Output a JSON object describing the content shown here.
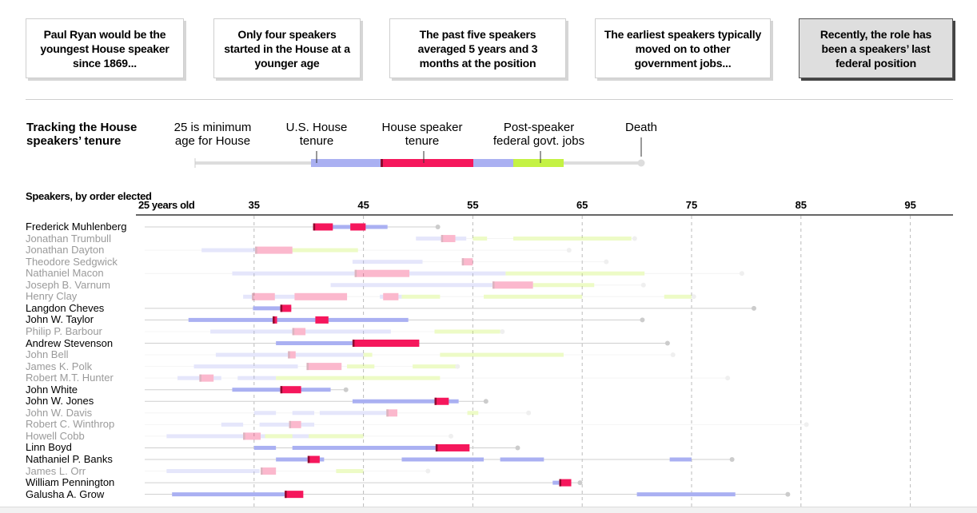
{
  "cards": [
    {
      "text": "Paul Ryan would be the youngest House speaker since 1869...",
      "active": false
    },
    {
      "text": "Only four speakers started in the House at a younger age",
      "active": false
    },
    {
      "text": "The past five speakers averaged 5 years and 3 months at the position",
      "active": false
    },
    {
      "text": "The earliest speakers typically moved on to other government jobs...",
      "active": false
    },
    {
      "text": "Recently, the role has been a speakers’ last federal position",
      "active": true
    }
  ],
  "legend": {
    "title": "Tracking the House speakers’ tenure",
    "min_age": "25 is minimum age for House",
    "house": "U.S. House tenure",
    "speaker": "House speaker tenure",
    "post": "Post-speaker federal govt. jobs",
    "death": "Death"
  },
  "colors": {
    "house": "#aab0f2",
    "speaker": "#f5175c",
    "post": "#c4f244",
    "line": "#dddddd",
    "marker": "#8c0a2e",
    "grid": "#bbbbbb"
  },
  "chart_data": {
    "type": "timeline",
    "title": "Speakers, by order elected",
    "x_unit": "age",
    "x_first_label": "25 years old",
    "x_ticks": [
      35,
      45,
      55,
      65,
      75,
      85,
      95
    ],
    "highlight_group": "last federal position",
    "rows": [
      {
        "name": "Frederick Muhlenberg",
        "hl": true,
        "start": 25.0,
        "house": [
          [
            40.4,
            47.2
          ]
        ],
        "speaker": [
          [
            40.4,
            42.2
          ],
          [
            43.8,
            45.2
          ]
        ],
        "post": [],
        "death": 51.8
      },
      {
        "name": "Jonathan Trumbull",
        "hl": false,
        "start": 50.4,
        "house": [
          [
            49.8,
            54.4
          ]
        ],
        "speaker": [
          [
            52.1,
            53.4
          ]
        ],
        "post": [
          [
            55.0,
            56.3
          ],
          [
            58.7,
            69.5
          ]
        ],
        "death": 69.8
      },
      {
        "name": "Jonathan Dayton",
        "hl": false,
        "start": 25.0,
        "house": [
          [
            30.2,
            38.6
          ]
        ],
        "speaker": [
          [
            35.1,
            38.5
          ]
        ],
        "post": [
          [
            38.5,
            44.5
          ]
        ],
        "death": 63.8
      },
      {
        "name": "Theodore Sedgwick",
        "hl": false,
        "start": 44.0,
        "house": [
          [
            44.0,
            50.4
          ]
        ],
        "speaker": [
          [
            54.0,
            55.0
          ]
        ],
        "post": [],
        "death": 67.2
      },
      {
        "name": "Nathaniel Macon",
        "hl": false,
        "start": 25.0,
        "house": [
          [
            33.0,
            58.0
          ]
        ],
        "speaker": [
          [
            44.2,
            49.2
          ]
        ],
        "post": [
          [
            58.0,
            70.7
          ]
        ],
        "death": 79.6
      },
      {
        "name": "Joseph B. Varnum",
        "hl": false,
        "start": 42.0,
        "house": [
          [
            42.0,
            57.0
          ]
        ],
        "speaker": [
          [
            56.8,
            60.5
          ]
        ],
        "post": [
          [
            60.5,
            66.1
          ]
        ],
        "death": 70.6
      },
      {
        "name": "Henry Clay",
        "hl": false,
        "start": 34.0,
        "house": [
          [
            34.0,
            43.5
          ],
          [
            46.5,
            48.5
          ]
        ],
        "speaker": [
          [
            34.8,
            36.9
          ],
          [
            38.7,
            43.5
          ],
          [
            46.8,
            48.2
          ]
        ],
        "post": [
          [
            48.5,
            52.0
          ],
          [
            56.0,
            65.0
          ],
          [
            72.5,
            75.0
          ]
        ],
        "death": 75.2
      },
      {
        "name": "Langdon Cheves",
        "hl": true,
        "start": 25.0,
        "house": [
          [
            34.9,
            38.4
          ]
        ],
        "speaker": [
          [
            37.4,
            38.4
          ]
        ],
        "post": [],
        "death": 80.7
      },
      {
        "name": "John W. Taylor",
        "hl": true,
        "start": 25.0,
        "house": [
          [
            29.0,
            49.1
          ]
        ],
        "speaker": [
          [
            36.7,
            37.1
          ],
          [
            40.6,
            41.8
          ]
        ],
        "post": [],
        "death": 70.5
      },
      {
        "name": "Philip P. Barbour",
        "hl": false,
        "start": 25.0,
        "house": [
          [
            31.0,
            47.5
          ]
        ],
        "speaker": [
          [
            38.5,
            39.7
          ]
        ],
        "post": [
          [
            51.5,
            57.5
          ]
        ],
        "death": 57.7
      },
      {
        "name": "Andrew Stevenson",
        "hl": true,
        "start": 25.0,
        "house": [
          [
            37.0,
            50.1
          ]
        ],
        "speaker": [
          [
            44.0,
            50.1
          ]
        ],
        "post": [],
        "death": 72.8
      },
      {
        "name": "John Bell",
        "hl": false,
        "start": 25.0,
        "house": [
          [
            31.5,
            45.0
          ]
        ],
        "speaker": [
          [
            38.1,
            38.8
          ]
        ],
        "post": [
          [
            45.0,
            45.8
          ],
          [
            52.0,
            63.3
          ]
        ],
        "death": 73.3
      },
      {
        "name": "James K. Polk",
        "hl": false,
        "start": 25.0,
        "house": [
          [
            29.5,
            39.0
          ]
        ],
        "speaker": [
          [
            39.8,
            43.0
          ]
        ],
        "post": [
          [
            43.5,
            46.0
          ],
          [
            49.5,
            53.5
          ]
        ],
        "death": 53.6
      },
      {
        "name": "Robert M.T. Hunter",
        "hl": false,
        "start": 25.0,
        "house": [
          [
            28.0,
            32.0
          ],
          [
            33.5,
            37.0
          ]
        ],
        "speaker": [
          [
            30.0,
            31.3
          ]
        ],
        "post": [
          [
            37.0,
            52.0
          ]
        ],
        "death": 78.3
      },
      {
        "name": "John White",
        "hl": true,
        "start": 25.0,
        "house": [
          [
            33.0,
            42.0
          ]
        ],
        "speaker": [
          [
            37.4,
            39.3
          ]
        ],
        "post": [],
        "death": 43.4
      },
      {
        "name": "John W. Jones",
        "hl": true,
        "start": 25.0,
        "house": [
          [
            44.0,
            53.7
          ]
        ],
        "speaker": [
          [
            51.5,
            52.8
          ]
        ],
        "post": [],
        "death": 56.2
      },
      {
        "name": "John W. Davis",
        "hl": false,
        "start": 25.0,
        "house": [
          [
            35.0,
            37.0
          ],
          [
            38.5,
            40.5
          ],
          [
            41.0,
            47.5
          ]
        ],
        "speaker": [
          [
            47.1,
            48.1
          ]
        ],
        "post": [
          [
            54.5,
            55.5
          ]
        ],
        "death": 60.1
      },
      {
        "name": "Robert C. Winthrop",
        "hl": false,
        "start": 25.0,
        "house": [
          [
            32.0,
            34.0
          ],
          [
            35.5,
            40.5
          ]
        ],
        "speaker": [
          [
            38.2,
            39.3
          ]
        ],
        "post": [],
        "death": 85.5
      },
      {
        "name": "Howell Cobb",
        "hl": false,
        "start": 25.0,
        "house": [
          [
            27.0,
            45.0
          ]
        ],
        "speaker": [
          [
            34.0,
            35.6
          ]
        ],
        "post": [
          [
            36.0,
            38.5
          ],
          [
            40.0,
            45.0
          ]
        ],
        "death": 53.0
      },
      {
        "name": "Linn Boyd",
        "hl": true,
        "start": 25.0,
        "house": [
          [
            35.0,
            37.0
          ],
          [
            38.5,
            52.0
          ]
        ],
        "speaker": [
          [
            51.6,
            54.7
          ]
        ],
        "post": [],
        "death": 59.1
      },
      {
        "name": "Nathaniel P. Banks",
        "hl": true,
        "start": 25.0,
        "house": [
          [
            37.0,
            41.4
          ],
          [
            48.5,
            56.0
          ],
          [
            57.5,
            61.5
          ],
          [
            73.0,
            75.0
          ]
        ],
        "speaker": [
          [
            39.9,
            41.0
          ]
        ],
        "post": [],
        "death": 78.7
      },
      {
        "name": "James L. Orr",
        "hl": false,
        "start": 25.0,
        "house": [
          [
            27.0,
            35.5
          ]
        ],
        "speaker": [
          [
            35.6,
            37.0
          ]
        ],
        "post": [
          [
            42.5,
            45.0
          ]
        ],
        "death": 50.9
      },
      {
        "name": "William Pennington",
        "hl": true,
        "start": 25.0,
        "house": [
          [
            62.3,
            63.5
          ]
        ],
        "speaker": [
          [
            62.9,
            64.0
          ]
        ],
        "post": [],
        "death": 64.8
      },
      {
        "name": "Galusha A. Grow",
        "hl": true,
        "start": 25.0,
        "house": [
          [
            27.5,
            38.5
          ],
          [
            70.0,
            79.0
          ]
        ],
        "speaker": [
          [
            37.8,
            39.5
          ]
        ],
        "post": [],
        "death": 83.8
      }
    ]
  }
}
